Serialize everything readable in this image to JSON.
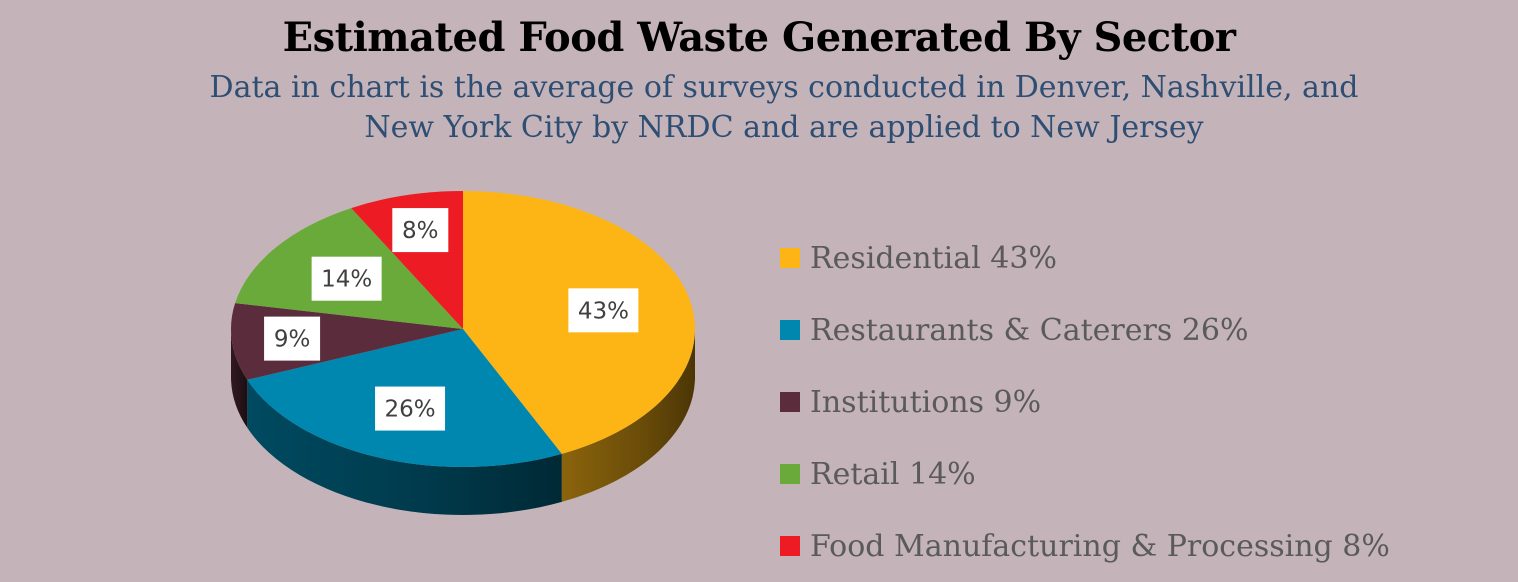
{
  "title": "Estimated Food Waste Generated By Sector",
  "subtitle": "Data in chart is the average of surveys conducted in Denver, Nashville, and New York City by NRDC and are applied to New Jersey",
  "chart_data": {
    "type": "pie",
    "title": "Estimated Food Waste Generated By Sector",
    "subtitle": "Data in chart is the average of surveys conducted in Denver, Nashville, and New York City by NRDC and are applied to New Jersey",
    "legend_position": "right",
    "slices": [
      {
        "name": "Residential",
        "value": 43,
        "label": "43%",
        "legend": "Residential 43%",
        "color": "#fdb515"
      },
      {
        "name": "Restaurants & Caterers",
        "value": 26,
        "label": "26%",
        "legend": "Restaurants & Caterers 26%",
        "color": "#0087b0"
      },
      {
        "name": "Institutions",
        "value": 9,
        "label": "9%",
        "legend": "Institutions 9%",
        "color": "#5b2d3c"
      },
      {
        "name": "Retail",
        "value": 14,
        "label": "14%",
        "legend": "Retail 14%",
        "color": "#6aaa3a"
      },
      {
        "name": "Food Manufacturing & Processing",
        "value": 8,
        "label": "8%",
        "legend": "Food Manufacturing & Processing 8%",
        "color": "#ed1c24"
      }
    ]
  }
}
